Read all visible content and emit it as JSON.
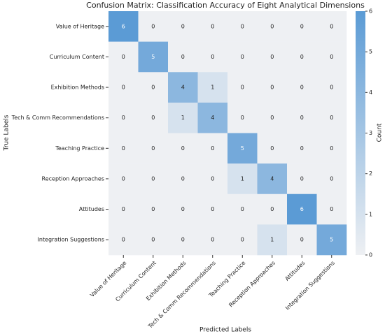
{
  "chart_data": {
    "type": "heatmap",
    "title": "Confusion Matrix: Classification Accuracy of Eight Analytical Dimensions",
    "xlabel": "Predicted Labels",
    "ylabel": "True Labels",
    "x_categories": [
      "Value of Heritage",
      "Curriculum Content",
      "Exhibition Methods",
      "Tech & Comm Recommendations",
      "Teaching Practice",
      "Reception Approaches",
      "Attitudes",
      "Integration Suggestions"
    ],
    "y_categories": [
      "Value of Heritage",
      "Curriculum Content",
      "Exhibition Methods",
      "Tech & Comm Recommendations",
      "Teaching Practice",
      "Reception Approaches",
      "Attitudes",
      "Integration Suggestions"
    ],
    "values": [
      [
        6,
        0,
        0,
        0,
        0,
        0,
        0,
        0
      ],
      [
        0,
        5,
        0,
        0,
        0,
        0,
        0,
        0
      ],
      [
        0,
        0,
        4,
        1,
        0,
        0,
        0,
        0
      ],
      [
        0,
        0,
        1,
        4,
        0,
        0,
        0,
        0
      ],
      [
        0,
        0,
        0,
        0,
        5,
        0,
        0,
        0
      ],
      [
        0,
        0,
        0,
        0,
        1,
        4,
        0,
        0
      ],
      [
        0,
        0,
        0,
        0,
        0,
        0,
        6,
        0
      ],
      [
        0,
        0,
        0,
        0,
        0,
        1,
        0,
        5
      ]
    ],
    "colors": [
      "#eef0f3",
      "#5b9bd5"
    ],
    "clim": [
      0,
      6
    ],
    "cticks": [
      0,
      1,
      2,
      3,
      4,
      5,
      6
    ],
    "colorbar_label": "Count"
  }
}
